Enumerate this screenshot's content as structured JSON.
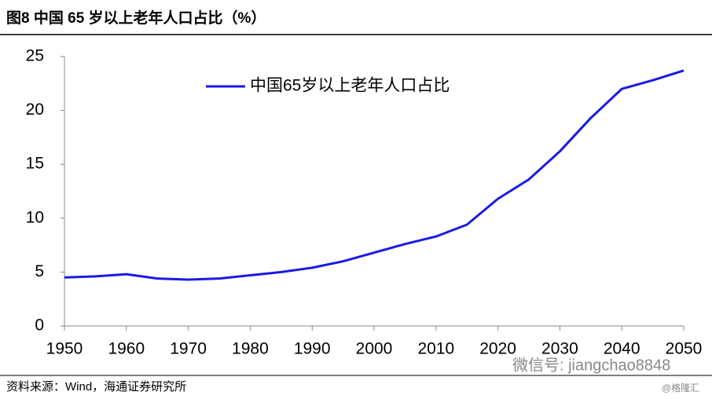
{
  "chart_data": {
    "type": "line",
    "title": "图8  中国 65 岁以上老年人口占比（%）",
    "source": "资料来源：Wind，海通证券研究所",
    "annotations": [
      "微信号: jiangchao8848",
      "@格隆汇"
    ],
    "x": [
      1950,
      1955,
      1960,
      1965,
      1970,
      1975,
      1980,
      1985,
      1990,
      1995,
      2000,
      2005,
      2010,
      2015,
      2020,
      2025,
      2030,
      2035,
      2040,
      2045,
      2050
    ],
    "series": [
      {
        "name": "中国65岁以上老年人口占比",
        "color": "#1a1ae6",
        "values": [
          4.5,
          4.6,
          4.8,
          4.4,
          4.3,
          4.4,
          4.7,
          5.0,
          5.4,
          6.0,
          6.8,
          7.6,
          8.3,
          9.4,
          11.8,
          13.6,
          16.2,
          19.3,
          22.0,
          22.8,
          23.7
        ]
      }
    ],
    "xlim": [
      1950,
      2050
    ],
    "xticks": [
      1950,
      1960,
      1970,
      1980,
      1990,
      2000,
      2010,
      2020,
      2030,
      2040,
      2050
    ],
    "ylim": [
      0,
      25
    ],
    "yticks": [
      0,
      5,
      10,
      15,
      20,
      25
    ],
    "grid": false,
    "legend": "top-left"
  }
}
